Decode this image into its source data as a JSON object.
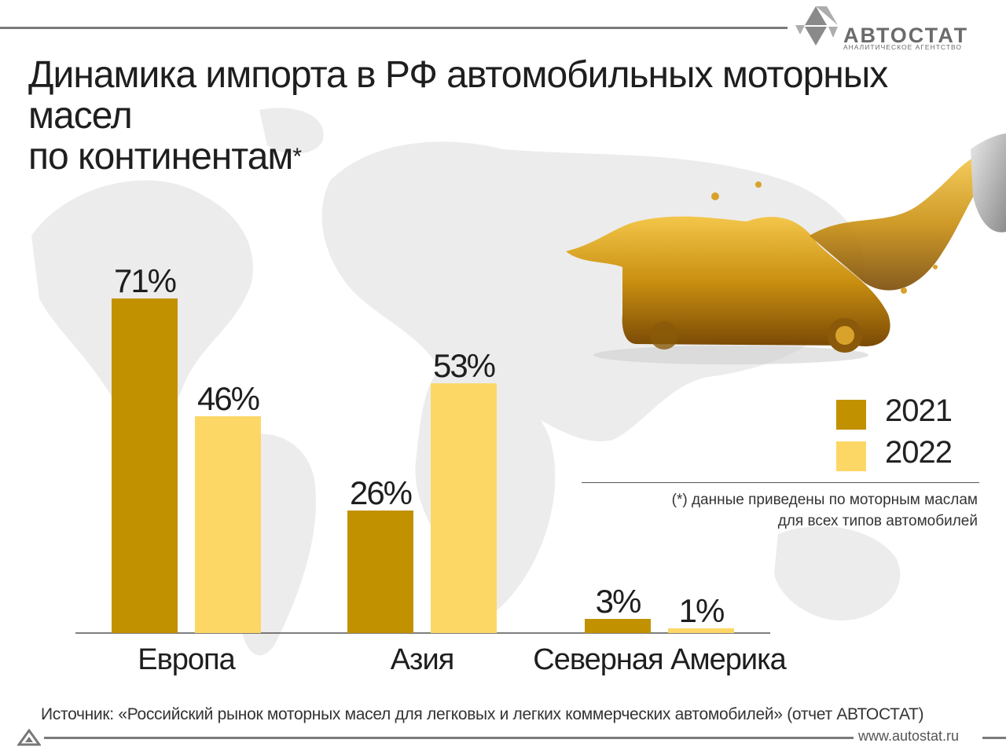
{
  "header": {
    "logo_name": "АВТОСТАТ",
    "logo_tagline": "АНАЛИТИЧЕСКОЕ АГЕНТСТВО"
  },
  "title": {
    "line1": "Динамика импорта в РФ автомобильных моторных масел",
    "line2": "по континентам",
    "asterisk": "*"
  },
  "legend": {
    "items": [
      {
        "label": "2021",
        "color": "#c29100"
      },
      {
        "label": "2022",
        "color": "#fdd766"
      }
    ]
  },
  "note": {
    "line1": "(*) данные приведены по моторным маслам",
    "line2": "для всех типов автомобилей"
  },
  "footer": {
    "source": "Источник: «Российский рынок моторных масел для легковых и легких коммерческих автомобилей» (отчет АВТОСТАТ)",
    "website": "www.autostat.ru"
  },
  "chart_data": {
    "type": "bar",
    "categories": [
      "Европа",
      "Азия",
      "Северная Америка"
    ],
    "series": [
      {
        "name": "2021",
        "values": [
          71,
          26,
          3
        ],
        "labels": [
          "71%",
          "26%",
          "3%"
        ],
        "color": "#c29100"
      },
      {
        "name": "2022",
        "values": [
          46,
          53,
          1
        ],
        "labels": [
          "46%",
          "53%",
          "1%"
        ],
        "color": "#fdd766"
      }
    ],
    "ylim": [
      0,
      100
    ],
    "grid": false,
    "legend_position": "right"
  }
}
